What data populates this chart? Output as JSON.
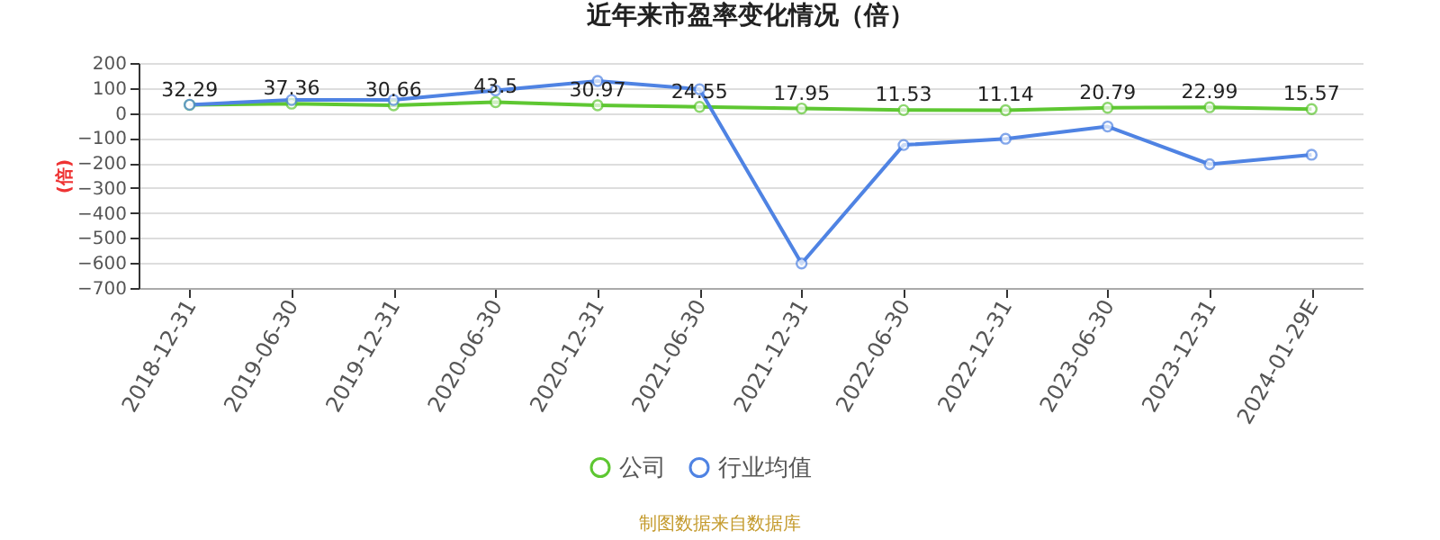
{
  "chart_data": {
    "type": "line",
    "title": "近年来市盈率变化情况（倍）",
    "ylabel": "(倍)",
    "categories": [
      "2018-12-31",
      "2019-06-30",
      "2019-12-31",
      "2020-06-30",
      "2020-12-31",
      "2021-06-30",
      "2021-12-31",
      "2022-06-30",
      "2022-12-31",
      "2023-06-30",
      "2023-12-31",
      "2024-01-29E"
    ],
    "series": [
      {
        "name": "公司",
        "color": "#5ec732",
        "values": [
          32.29,
          37.36,
          30.66,
          43.5,
          30.97,
          24.55,
          17.95,
          11.53,
          11.14,
          20.79,
          22.99,
          15.57
        ],
        "value_labels": [
          "32.29",
          "37.36",
          "30.66",
          "43.5",
          "30.97",
          "24.55",
          "17.95",
          "11.53",
          "11.14",
          "20.79",
          "22.99",
          "15.57"
        ]
      },
      {
        "name": "行业均值",
        "color": "#4f83e3",
        "values": [
          33,
          52,
          52,
          90,
          128,
          95,
          -602,
          -128,
          -103,
          -54,
          -205,
          -167
        ]
      }
    ],
    "ylim": [
      -700,
      200
    ],
    "yticks": [
      -700,
      -600,
      -500,
      -400,
      -300,
      -200,
      -100,
      0,
      100,
      200
    ],
    "grid": "y",
    "legend": "bottom",
    "marker": "circle",
    "line_style": "solid",
    "annotations": [
      "制图数据来自数据库"
    ]
  }
}
